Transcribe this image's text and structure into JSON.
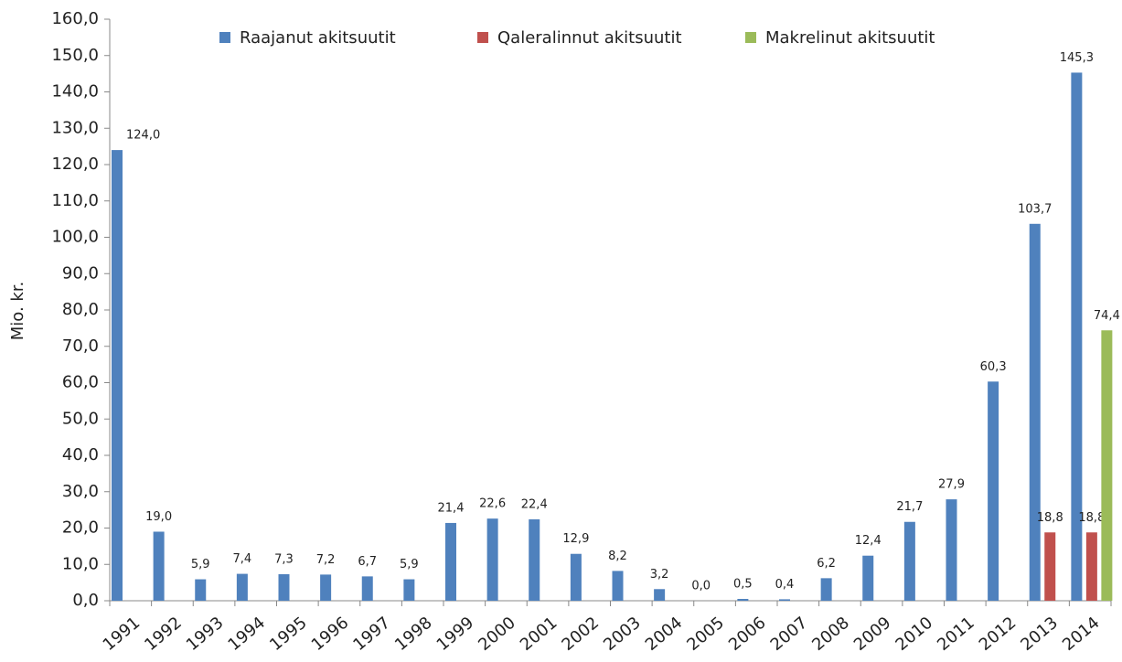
{
  "chart_data": {
    "type": "bar",
    "y_label": "Mio. kr.",
    "categories": [
      "1991",
      "1992",
      "1993",
      "1994",
      "1995",
      "1996",
      "1997",
      "1998",
      "1999",
      "2000",
      "2001",
      "2002",
      "2003",
      "2004",
      "2005",
      "2006",
      "2007",
      "2008",
      "2009",
      "2010",
      "2011",
      "2012",
      "2013",
      "2014"
    ],
    "series": [
      {
        "name": "Raajanut akitsuutit",
        "color": "#4f81bd",
        "values": [
          124.0,
          19.0,
          5.9,
          7.4,
          7.3,
          7.2,
          6.7,
          5.9,
          21.4,
          22.6,
          22.4,
          12.9,
          8.2,
          3.2,
          0.0,
          0.5,
          0.4,
          6.2,
          12.4,
          21.7,
          27.9,
          60.3,
          103.7,
          145.3
        ],
        "value_labels": [
          "124,0",
          "19,0",
          "5,9",
          "7,4",
          "7,3",
          "7,2",
          "6,7",
          "5,9",
          "21,4",
          "22,6",
          "22,4",
          "12,9",
          "8,2",
          "3,2",
          "0,0",
          "0,5",
          "0,4",
          "6,2",
          "12,4",
          "21,7",
          "27,9",
          "60,3",
          "103,7",
          "145,3"
        ]
      },
      {
        "name": "Qaleralinnut akitsuutit",
        "color": "#c0504d",
        "values": [
          null,
          null,
          null,
          null,
          null,
          null,
          null,
          null,
          null,
          null,
          null,
          null,
          null,
          null,
          null,
          null,
          null,
          null,
          null,
          null,
          null,
          null,
          18.8,
          18.8
        ],
        "value_labels": [
          null,
          null,
          null,
          null,
          null,
          null,
          null,
          null,
          null,
          null,
          null,
          null,
          null,
          null,
          null,
          null,
          null,
          null,
          null,
          null,
          null,
          null,
          "18,8",
          "18,8"
        ]
      },
      {
        "name": "Makrelinut akitsuutit",
        "color": "#9bbb59",
        "values": [
          null,
          null,
          null,
          null,
          null,
          null,
          null,
          null,
          null,
          null,
          null,
          null,
          null,
          null,
          null,
          null,
          null,
          null,
          null,
          null,
          null,
          null,
          null,
          74.4
        ],
        "value_labels": [
          null,
          null,
          null,
          null,
          null,
          null,
          null,
          null,
          null,
          null,
          null,
          null,
          null,
          null,
          null,
          null,
          null,
          null,
          null,
          null,
          null,
          null,
          null,
          "74,4"
        ]
      }
    ],
    "ylim": [
      0,
      160
    ],
    "yticks": [
      {
        "value": 0,
        "label": "0,0"
      },
      {
        "value": 10,
        "label": "10,0"
      },
      {
        "value": 20,
        "label": "20,0"
      },
      {
        "value": 30,
        "label": "30,0"
      },
      {
        "value": 40,
        "label": "40,0"
      },
      {
        "value": 50,
        "label": "50,0"
      },
      {
        "value": 60,
        "label": "60,0"
      },
      {
        "value": 70,
        "label": "70,0"
      },
      {
        "value": 80,
        "label": "80,0"
      },
      {
        "value": 90,
        "label": "90,0"
      },
      {
        "value": 100,
        "label": "100,0"
      },
      {
        "value": 110,
        "label": "110,0"
      },
      {
        "value": 120,
        "label": "120,0"
      },
      {
        "value": 130,
        "label": "130,0"
      },
      {
        "value": 140,
        "label": "140,0"
      },
      {
        "value": 150,
        "label": "150,0"
      },
      {
        "value": 160,
        "label": "160,0"
      }
    ],
    "legend": "top"
  }
}
